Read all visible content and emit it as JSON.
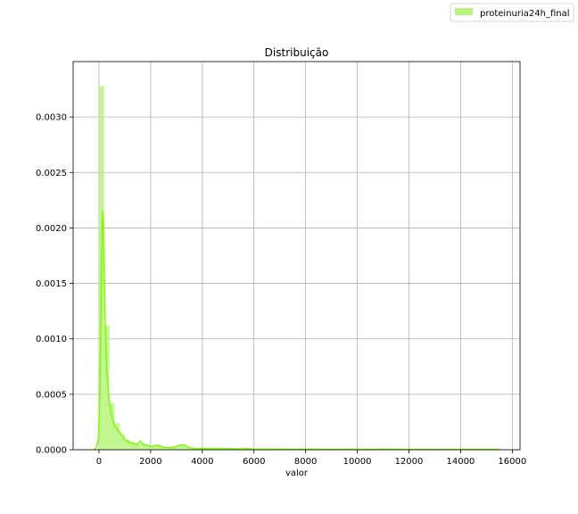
{
  "chart_data": {
    "type": "histogram",
    "title": "Distribuição",
    "xlabel": "valor",
    "ylabel": "",
    "xlim": [
      -1000,
      16300
    ],
    "ylim": [
      0,
      0.0035
    ],
    "xticks": [
      0,
      2000,
      4000,
      6000,
      8000,
      10000,
      12000,
      14000,
      16000
    ],
    "yticks": [
      "0.0000",
      "0.0005",
      "0.0010",
      "0.0015",
      "0.0020",
      "0.0025",
      "0.0030"
    ],
    "grid": true,
    "legend": {
      "position": "top-right",
      "entries": [
        "proteinuria24h_final"
      ]
    },
    "colors": {
      "bar": "#b8f57d",
      "line": "#7cfc00",
      "grid": "#b0b0b0"
    },
    "series": [
      {
        "name": "proteinuria24h_final",
        "histogram": {
          "bin_width": 200,
          "bins": [
            {
              "x0": 0,
              "height": 0.00328
            },
            {
              "x0": 200,
              "height": 0.00112
            },
            {
              "x0": 400,
              "height": 0.00042
            },
            {
              "x0": 600,
              "height": 0.00024
            },
            {
              "x0": 800,
              "height": 0.00014
            },
            {
              "x0": 1000,
              "height": 9e-05
            },
            {
              "x0": 1200,
              "height": 7e-05
            },
            {
              "x0": 1400,
              "height": 5e-05
            },
            {
              "x0": 1600,
              "height": 6e-05
            },
            {
              "x0": 1800,
              "height": 4e-05
            },
            {
              "x0": 2000,
              "height": 3e-05
            },
            {
              "x0": 2200,
              "height": 4e-05
            },
            {
              "x0": 2400,
              "height": 2e-05
            },
            {
              "x0": 2600,
              "height": 2e-05
            },
            {
              "x0": 2800,
              "height": 2e-05
            },
            {
              "x0": 3000,
              "height": 3e-05
            },
            {
              "x0": 3200,
              "height": 4e-05
            },
            {
              "x0": 3400,
              "height": 2e-05
            },
            {
              "x0": 3600,
              "height": 1e-05
            },
            {
              "x0": 3800,
              "height": 1e-05
            },
            {
              "x0": 4000,
              "height": 1e-05
            },
            {
              "x0": 4400,
              "height": 1.5e-05
            },
            {
              "x0": 5000,
              "height": 1e-05
            },
            {
              "x0": 5600,
              "height": 1e-05
            },
            {
              "x0": 6400,
              "height": 8e-06
            },
            {
              "x0": 7200,
              "height": 6e-06
            },
            {
              "x0": 8800,
              "height": 6e-06
            },
            {
              "x0": 11200,
              "height": 8e-06
            },
            {
              "x0": 15200,
              "height": 5e-06
            }
          ]
        },
        "kde": {
          "x": [
            -200,
            -100,
            -20,
            40,
            80,
            110,
            140,
            170,
            200,
            250,
            300,
            400,
            500,
            600,
            700,
            800,
            900,
            1000,
            1100,
            1200,
            1300,
            1400,
            1500,
            1600,
            1700,
            1800,
            1900,
            2000,
            2100,
            2200,
            2300,
            2400,
            2500,
            2600,
            2700,
            2800,
            2900,
            3000,
            3100,
            3200,
            3300,
            3400,
            3500,
            3600,
            3800,
            4000,
            4200,
            4400,
            4600,
            4800,
            5000,
            5200,
            5500,
            5800,
            6000,
            6500,
            7000,
            7500,
            8000,
            8500,
            9000,
            9500,
            10000,
            10500,
            11000,
            11500,
            12000,
            12500,
            13000,
            13500,
            14000,
            14500,
            15000,
            15500
          ],
          "y": [
            0,
            2e-05,
            0.0001,
            0.00055,
            0.0013,
            0.0019,
            0.00215,
            0.00205,
            0.00165,
            0.00105,
            0.00072,
            0.00042,
            0.0003,
            0.00022,
            0.00018,
            0.00016,
            0.00012,
            9e-05,
            8e-05,
            6e-05,
            6e-05,
            5e-05,
            5e-05,
            8e-05,
            5e-05,
            4e-05,
            4e-05,
            3e-05,
            3e-05,
            4e-05,
            4e-05,
            3e-05,
            2e-05,
            2e-05,
            2e-05,
            2e-05,
            2e-05,
            3e-05,
            4e-05,
            4e-05,
            4.5e-05,
            3e-05,
            2e-05,
            1.5e-05,
            1e-05,
            1.2e-05,
            1e-05,
            1.2e-05,
            1.2e-05,
            8e-06,
            1e-05,
            1e-05,
            7e-06,
            1e-05,
            5e-06,
            6e-06,
            5e-06,
            4e-06,
            5e-06,
            4e-06,
            3e-06,
            4e-06,
            4e-06,
            3e-06,
            5e-06,
            4e-06,
            3e-06,
            3e-06,
            2e-06,
            3e-06,
            3e-06,
            2e-06,
            3e-06,
            2e-06
          ]
        }
      }
    ]
  }
}
